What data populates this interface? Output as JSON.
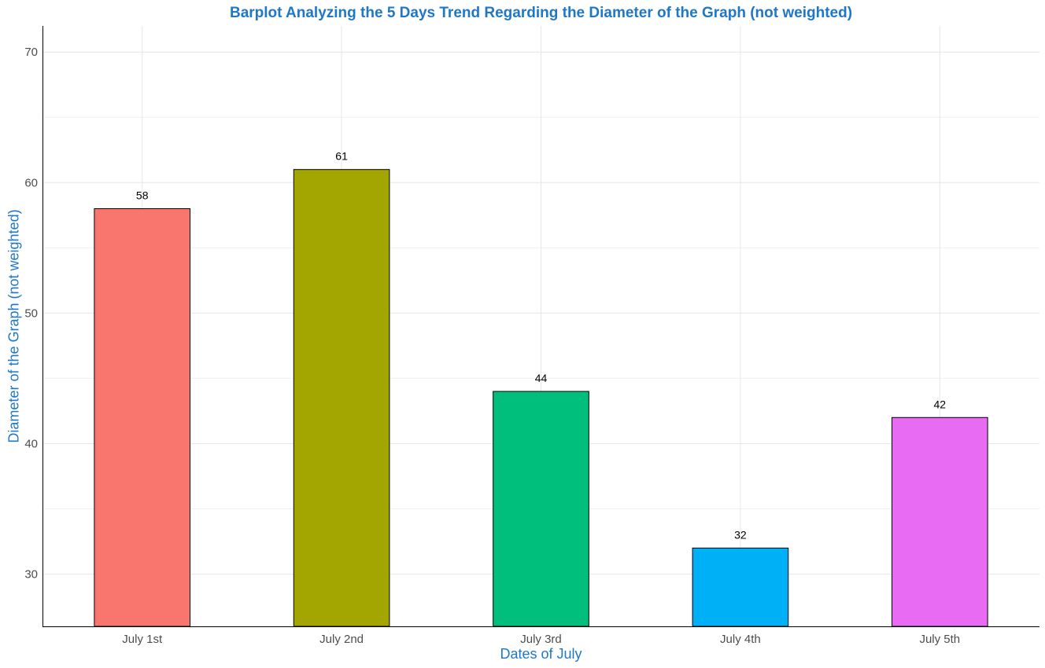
{
  "chart_data": {
    "type": "bar",
    "title": "Barplot Analyzing the 5 Days Trend Regarding the Diameter of the Graph (not weighted)",
    "xlabel": "Dates of July",
    "ylabel": "Diameter of the Graph (not weighted)",
    "categories": [
      "July 1st",
      "July 2nd",
      "July 3rd",
      "July 4th",
      "July 5th"
    ],
    "values": [
      58,
      61,
      44,
      32,
      42
    ],
    "data_labels": [
      "58",
      "61",
      "44",
      "32",
      "42"
    ],
    "colors": [
      "#F8766D",
      "#A3A500",
      "#00BF7D",
      "#00B0F6",
      "#E76BF3"
    ],
    "ylim": [
      26,
      72
    ],
    "yticks": [
      30,
      40,
      50,
      60,
      70
    ],
    "ytick_labels": [
      "30",
      "40",
      "50",
      "60",
      "70"
    ],
    "grid": true,
    "legend": "none"
  }
}
